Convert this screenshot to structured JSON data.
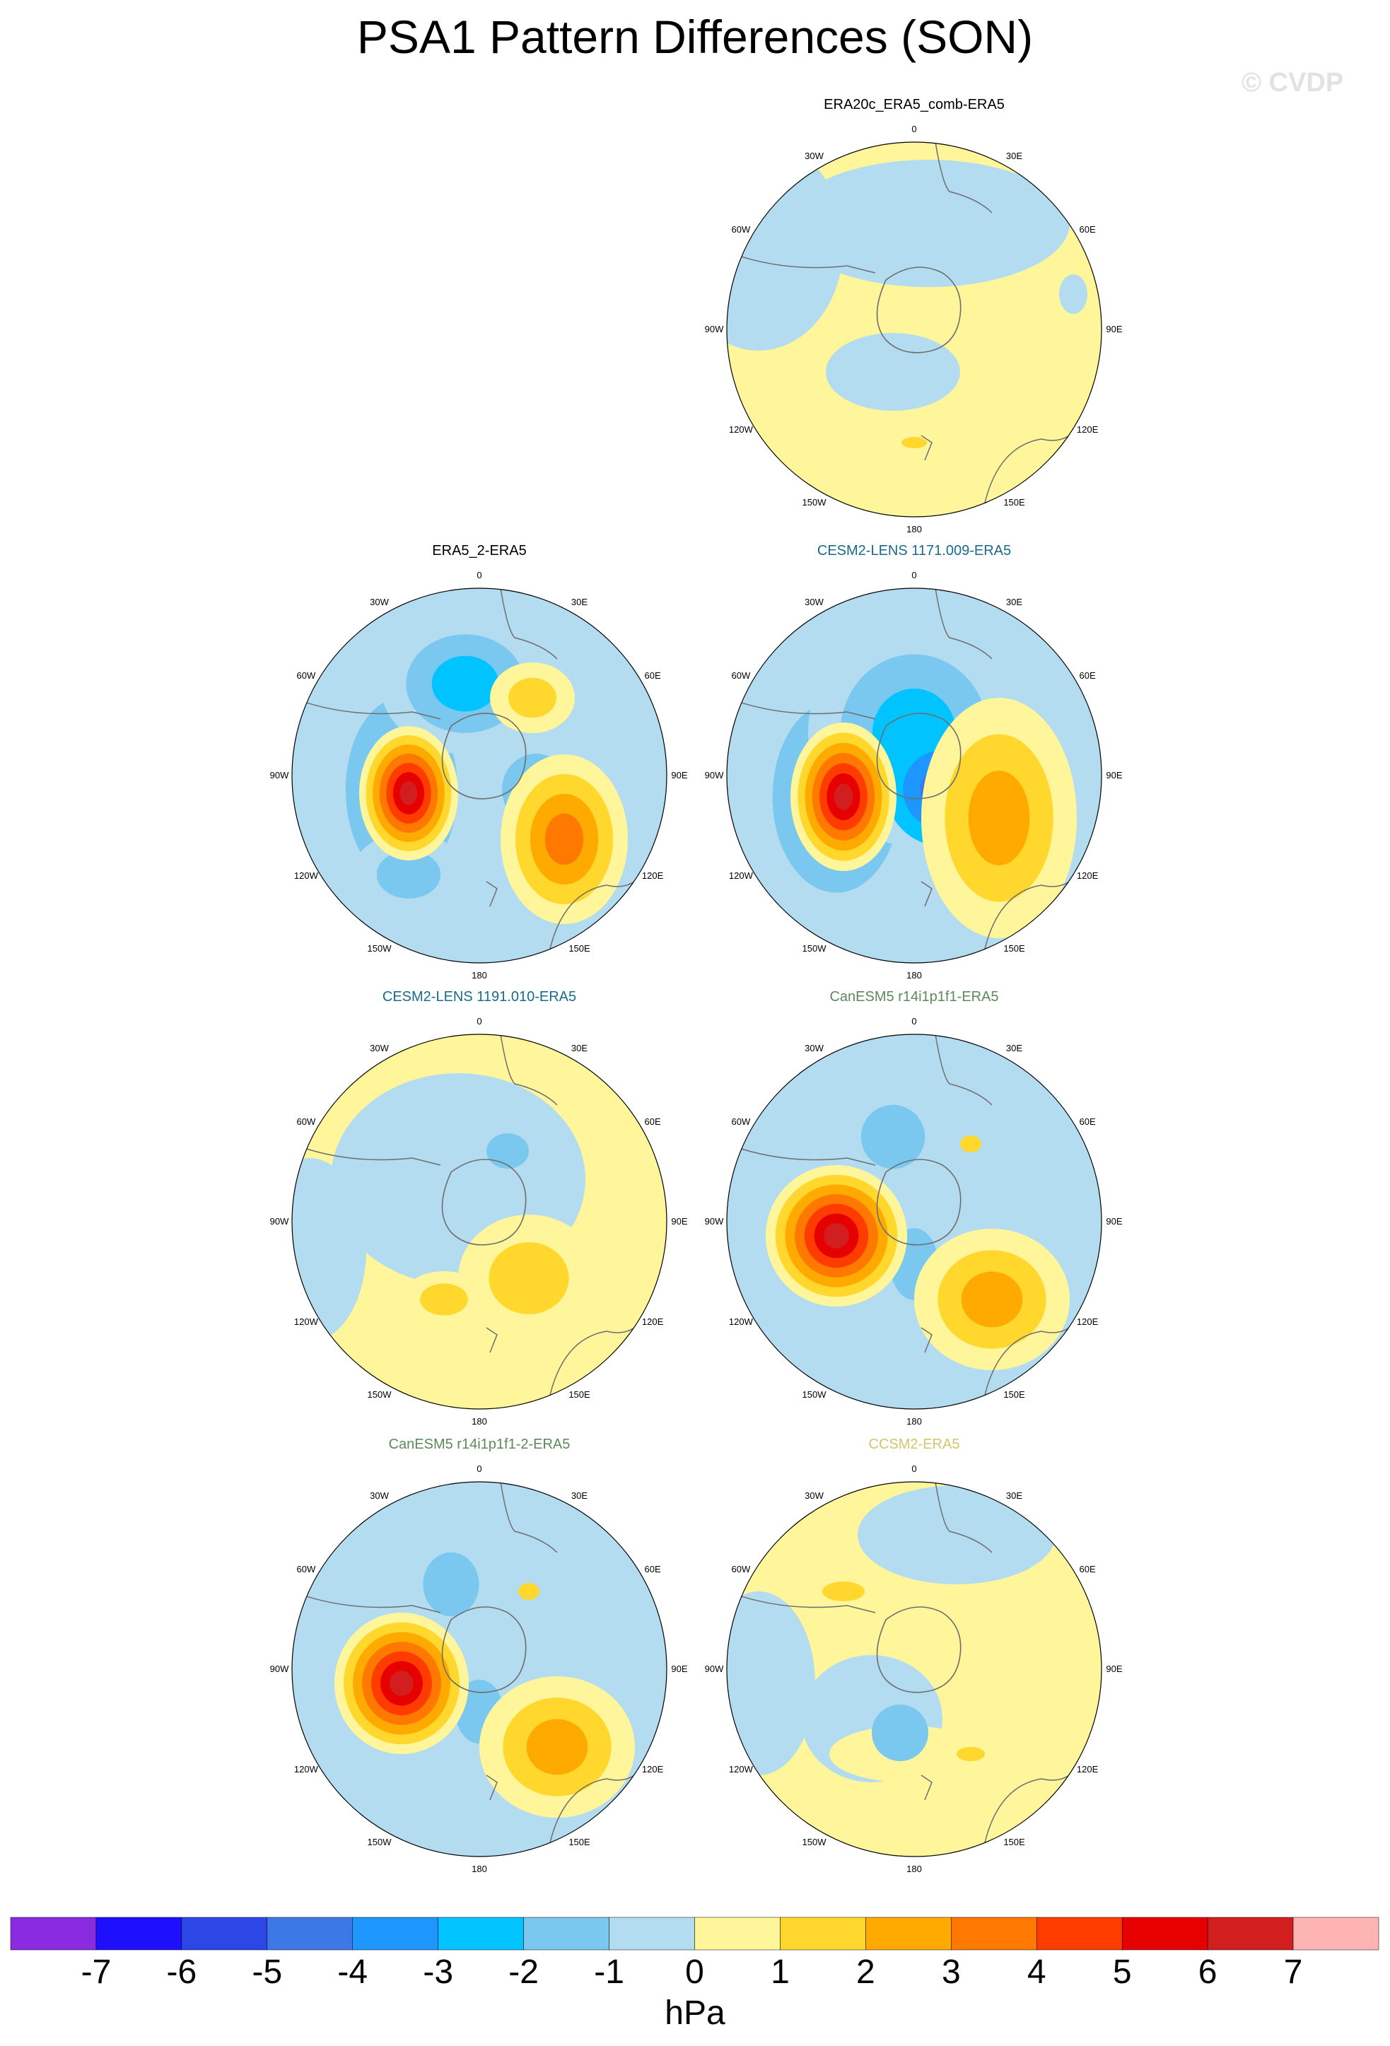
{
  "title": "PSA1 Pattern Differences (SON)",
  "watermark": "© CVDP",
  "colors": {
    "neg7": "#8a2be2",
    "neg6": "#1e10ff",
    "neg5": "#2d46e6",
    "neg4": "#3c78e6",
    "neg3": "#1e96ff",
    "neg2": "#00c3ff",
    "neg1": "#7ac8f0",
    "neg0": "#b4dcf0",
    "pos0": "#fff59a",
    "pos1": "#ffd72d",
    "pos2": "#ffaa00",
    "pos3": "#ff7800",
    "pos4": "#ff3c00",
    "pos5": "#e60000",
    "pos6": "#d21e1e",
    "pos7": "#ffb4b4",
    "coast": "#6e6e6e"
  },
  "lon_labels": [
    "0",
    "30E",
    "60E",
    "90E",
    "120E",
    "150E",
    "180",
    "150W",
    "120W",
    "90W",
    "60W",
    "30W"
  ],
  "panels": [
    {
      "id": "era20c",
      "title": "ERA20c_ERA5_comb-ERA5",
      "title_color": "#000000"
    },
    {
      "id": "era5_2",
      "title": "ERA5_2-ERA5",
      "title_color": "#000000"
    },
    {
      "id": "cesm2_1171",
      "title": "CESM2-LENS 1171.009-ERA5",
      "title_color": "#1a6a8c"
    },
    {
      "id": "cesm2_1191",
      "title": "CESM2-LENS 1191.010-ERA5",
      "title_color": "#1a6a8c"
    },
    {
      "id": "canesm5",
      "title": "CanESM5 r14i1p1f1-ERA5",
      "title_color": "#5a8a5a"
    },
    {
      "id": "canesm5_2",
      "title": "CanESM5 r14i1p1f1-2-ERA5",
      "title_color": "#5a8a5a"
    },
    {
      "id": "ccsm2",
      "title": "CCSM2-ERA5",
      "title_color": "#d4c56a"
    }
  ],
  "colorbar": {
    "ticks": [
      "-7",
      "-6",
      "-5",
      "-4",
      "-3",
      "-2",
      "-1",
      "0",
      "1",
      "2",
      "3",
      "4",
      "5",
      "6",
      "7"
    ],
    "units": "hPa"
  }
}
